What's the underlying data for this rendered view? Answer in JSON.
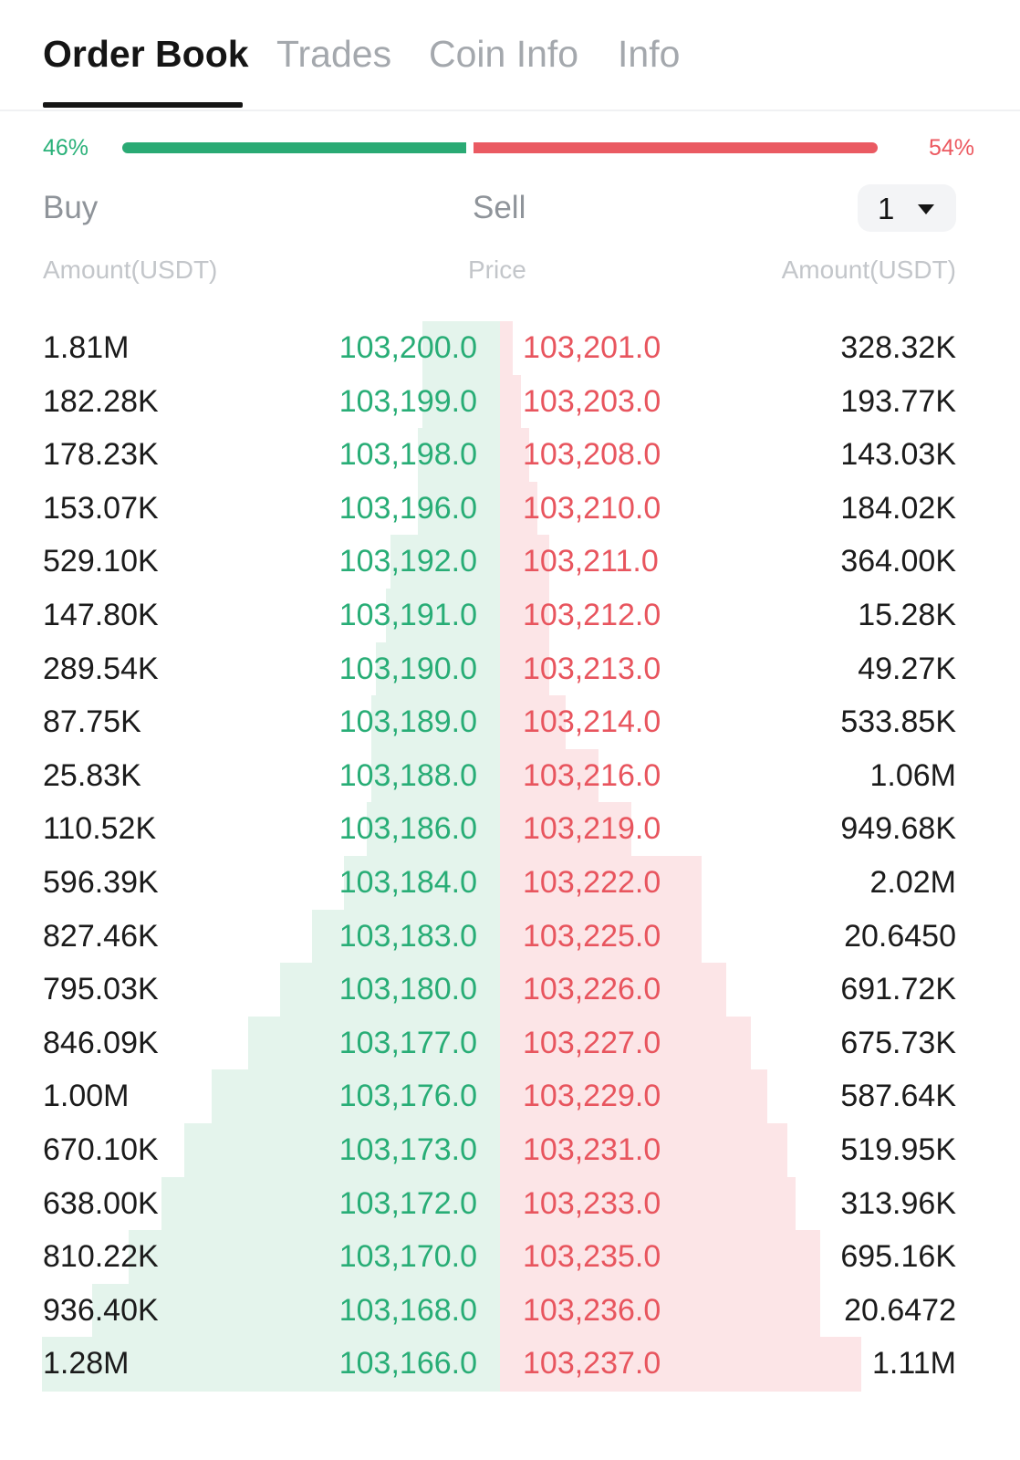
{
  "tabs": [
    {
      "label": "Order Book",
      "active": true
    },
    {
      "label": "Trades",
      "active": false
    },
    {
      "label": "Coin Info",
      "active": false
    },
    {
      "label": "Info",
      "active": false
    }
  ],
  "ratio": {
    "buy_label": "46%",
    "sell_label": "54%",
    "buy_fraction": 0.46,
    "sell_fraction": 0.54
  },
  "colors": {
    "buy": "#2aaa74",
    "sell": "#ea5a62",
    "buy_depth": "#e4f4ec",
    "sell_depth": "#fce5e7"
  },
  "controls": {
    "buy_label": "Buy",
    "sell_label": "Sell",
    "precision": "1",
    "precision_icon": "chevron-down-icon"
  },
  "columns": {
    "left": "Amount(USDT)",
    "center": "Price",
    "right": "Amount(USDT)"
  },
  "rows": [
    {
      "bid_amount": "1.81M",
      "bid_price": "103,200.0",
      "ask_price": "103,201.0",
      "ask_amount": "328.32K",
      "bid_depth": 0.17,
      "ask_depth": 0.03
    },
    {
      "bid_amount": "182.28K",
      "bid_price": "103,199.0",
      "ask_price": "103,203.0",
      "ask_amount": "193.77K",
      "bid_depth": 0.17,
      "ask_depth": 0.05
    },
    {
      "bid_amount": "178.23K",
      "bid_price": "103,198.0",
      "ask_price": "103,208.0",
      "ask_amount": "143.03K",
      "bid_depth": 0.18,
      "ask_depth": 0.07
    },
    {
      "bid_amount": "153.07K",
      "bid_price": "103,196.0",
      "ask_price": "103,210.0",
      "ask_amount": "184.02K",
      "bid_depth": 0.18,
      "ask_depth": 0.09
    },
    {
      "bid_amount": "529.10K",
      "bid_price": "103,192.0",
      "ask_price": "103,211.0",
      "ask_amount": "364.00K",
      "bid_depth": 0.24,
      "ask_depth": 0.12
    },
    {
      "bid_amount": "147.80K",
      "bid_price": "103,191.0",
      "ask_price": "103,212.0",
      "ask_amount": "15.28K",
      "bid_depth": 0.25,
      "ask_depth": 0.12
    },
    {
      "bid_amount": "289.54K",
      "bid_price": "103,190.0",
      "ask_price": "103,213.0",
      "ask_amount": "49.27K",
      "bid_depth": 0.27,
      "ask_depth": 0.12
    },
    {
      "bid_amount": "87.75K",
      "bid_price": "103,189.0",
      "ask_price": "103,214.0",
      "ask_amount": "533.85K",
      "bid_depth": 0.28,
      "ask_depth": 0.16
    },
    {
      "bid_amount": "25.83K",
      "bid_price": "103,188.0",
      "ask_price": "103,216.0",
      "ask_amount": "1.06M",
      "bid_depth": 0.28,
      "ask_depth": 0.24
    },
    {
      "bid_amount": "110.52K",
      "bid_price": "103,186.0",
      "ask_price": "103,219.0",
      "ask_amount": "949.68K",
      "bid_depth": 0.29,
      "ask_depth": 0.32
    },
    {
      "bid_amount": "596.39K",
      "bid_price": "103,184.0",
      "ask_price": "103,222.0",
      "ask_amount": "2.02M",
      "bid_depth": 0.34,
      "ask_depth": 0.49
    },
    {
      "bid_amount": "827.46K",
      "bid_price": "103,183.0",
      "ask_price": "103,225.0",
      "ask_amount": "20.6450",
      "bid_depth": 0.41,
      "ask_depth": 0.49
    },
    {
      "bid_amount": "795.03K",
      "bid_price": "103,180.0",
      "ask_price": "103,226.0",
      "ask_amount": "691.72K",
      "bid_depth": 0.48,
      "ask_depth": 0.55
    },
    {
      "bid_amount": "846.09K",
      "bid_price": "103,177.0",
      "ask_price": "103,227.0",
      "ask_amount": "675.73K",
      "bid_depth": 0.55,
      "ask_depth": 0.61
    },
    {
      "bid_amount": "1.00M",
      "bid_price": "103,176.0",
      "ask_price": "103,229.0",
      "ask_amount": "587.64K",
      "bid_depth": 0.63,
      "ask_depth": 0.65
    },
    {
      "bid_amount": "670.10K",
      "bid_price": "103,173.0",
      "ask_price": "103,231.0",
      "ask_amount": "519.95K",
      "bid_depth": 0.69,
      "ask_depth": 0.7
    },
    {
      "bid_amount": "638.00K",
      "bid_price": "103,172.0",
      "ask_price": "103,233.0",
      "ask_amount": "313.96K",
      "bid_depth": 0.74,
      "ask_depth": 0.72
    },
    {
      "bid_amount": "810.22K",
      "bid_price": "103,170.0",
      "ask_price": "103,235.0",
      "ask_amount": "695.16K",
      "bid_depth": 0.81,
      "ask_depth": 0.78
    },
    {
      "bid_amount": "936.40K",
      "bid_price": "103,168.0",
      "ask_price": "103,236.0",
      "ask_amount": "20.6472",
      "bid_depth": 0.89,
      "ask_depth": 0.78
    },
    {
      "bid_amount": "1.28M",
      "bid_price": "103,166.0",
      "ask_price": "103,237.0",
      "ask_amount": "1.11M",
      "bid_depth": 1.0,
      "ask_depth": 0.88
    }
  ]
}
